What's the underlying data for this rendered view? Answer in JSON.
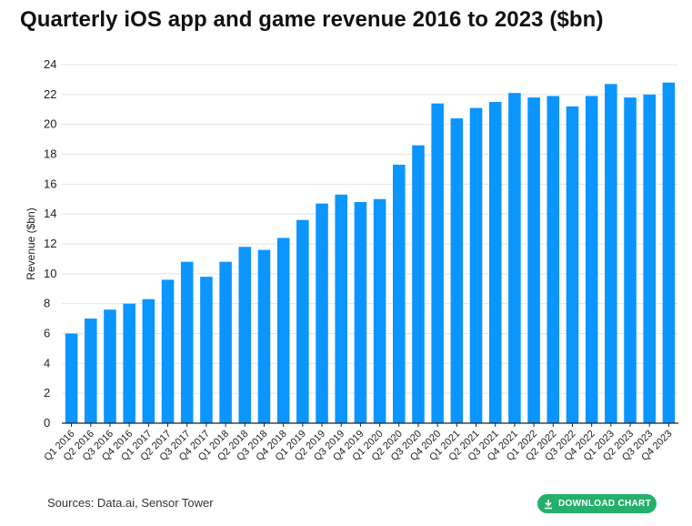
{
  "title": "Quarterly iOS app and game revenue 2016 to 2023 ($bn)",
  "source": "Sources: Data.ai, Sensor Tower",
  "download_label": "DOWNLOAD CHART",
  "colors": {
    "bar": "#0a95ff",
    "grid": "#e4e4e4",
    "axis": "#222222",
    "button": "#24b06a"
  },
  "chart_data": {
    "type": "bar",
    "title": "Quarterly iOS app and game revenue 2016 to 2023 ($bn)",
    "xlabel": "",
    "ylabel": "Revenue ($bn)",
    "ylim": [
      0,
      24
    ],
    "yticks": [
      0,
      2,
      4,
      6,
      8,
      10,
      12,
      14,
      16,
      18,
      20,
      22,
      24
    ],
    "grid": true,
    "categories": [
      "Q1 2016",
      "Q2 2016",
      "Q3 2016",
      "Q4 2016",
      "Q1 2017",
      "Q2 2017",
      "Q3 2017",
      "Q4 2017",
      "Q1 2018",
      "Q2 2018",
      "Q3 2018",
      "Q4 2018",
      "Q1 2019",
      "Q2 2019",
      "Q3 2019",
      "Q4 2019",
      "Q1 2020",
      "Q2 2020",
      "Q3 2020",
      "Q4 2020",
      "Q1 2021",
      "Q2 2021",
      "Q3 2021",
      "Q4 2021",
      "Q1 2022",
      "Q2 2022",
      "Q3 2022",
      "Q4 2022",
      "Q1 2023",
      "Q2 2023",
      "Q3 2023",
      "Q4 2023"
    ],
    "values": [
      6.0,
      7.0,
      7.6,
      8.0,
      8.3,
      9.6,
      10.8,
      9.8,
      10.8,
      11.8,
      11.6,
      12.4,
      13.6,
      14.7,
      15.3,
      14.8,
      15.0,
      17.3,
      18.6,
      21.4,
      20.4,
      21.1,
      21.5,
      22.1,
      21.8,
      21.9,
      21.2,
      21.9,
      22.7,
      21.8,
      22.0,
      22.8
    ]
  }
}
